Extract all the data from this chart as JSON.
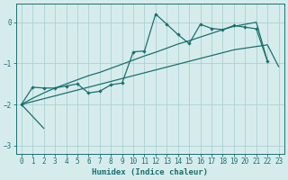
{
  "xlabel": "Humidex (Indice chaleur)",
  "background_color": "#d6ecec",
  "grid_color": "#aed0d0",
  "line_color": "#1a7070",
  "ylim": [
    -3.2,
    0.45
  ],
  "xlim": [
    -0.5,
    23.5
  ],
  "yticks": [
    0,
    -1,
    -2,
    -3
  ],
  "xticks": [
    0,
    1,
    2,
    3,
    4,
    5,
    6,
    7,
    8,
    9,
    10,
    11,
    12,
    13,
    14,
    15,
    16,
    17,
    18,
    19,
    20,
    21,
    22,
    23
  ],
  "line1_x": [
    0,
    1,
    2,
    3,
    4,
    5,
    6,
    7,
    8,
    9,
    10,
    11,
    12,
    13,
    14,
    15,
    16,
    17,
    18,
    19,
    20,
    21,
    22
  ],
  "line1_y": [
    -2.0,
    -1.58,
    -1.6,
    -1.6,
    -1.55,
    -1.5,
    -1.72,
    -1.68,
    -1.52,
    -1.48,
    -0.72,
    -0.7,
    0.2,
    -0.05,
    -0.3,
    -0.52,
    -0.05,
    -0.15,
    -0.18,
    -0.08,
    -0.12,
    -0.16,
    -0.95
  ],
  "line2_x": [
    0,
    1,
    2,
    3,
    4,
    5,
    6,
    7,
    8,
    9,
    10,
    11,
    12,
    13,
    14,
    15,
    16,
    17,
    18,
    19,
    20,
    21,
    22,
    23
  ],
  "line2_y": [
    -2.0,
    -1.93,
    -1.86,
    -1.79,
    -1.72,
    -1.65,
    -1.58,
    -1.51,
    -1.44,
    -1.37,
    -1.3,
    -1.23,
    -1.16,
    -1.09,
    -1.02,
    -0.95,
    -0.88,
    -0.81,
    -0.74,
    -0.67,
    -0.63,
    -0.59,
    -0.55,
    -1.08
  ],
  "line3_x": [
    0,
    1,
    2,
    3,
    4,
    5,
    6,
    7,
    8,
    9,
    10,
    11,
    12,
    13,
    14,
    15,
    16,
    17,
    18,
    19,
    20,
    21,
    22,
    23
  ],
  "line3_y": [
    -2.0,
    -1.85,
    -1.72,
    -1.6,
    -1.5,
    -1.4,
    -1.3,
    -1.22,
    -1.12,
    -1.02,
    -0.92,
    -0.82,
    -0.73,
    -0.63,
    -0.53,
    -0.45,
    -0.36,
    -0.27,
    -0.18,
    -0.1,
    -0.05,
    0.0,
    -0.95,
    null
  ],
  "line4_x": [
    0,
    2
  ],
  "line4_y": [
    -2.0,
    -2.58
  ]
}
